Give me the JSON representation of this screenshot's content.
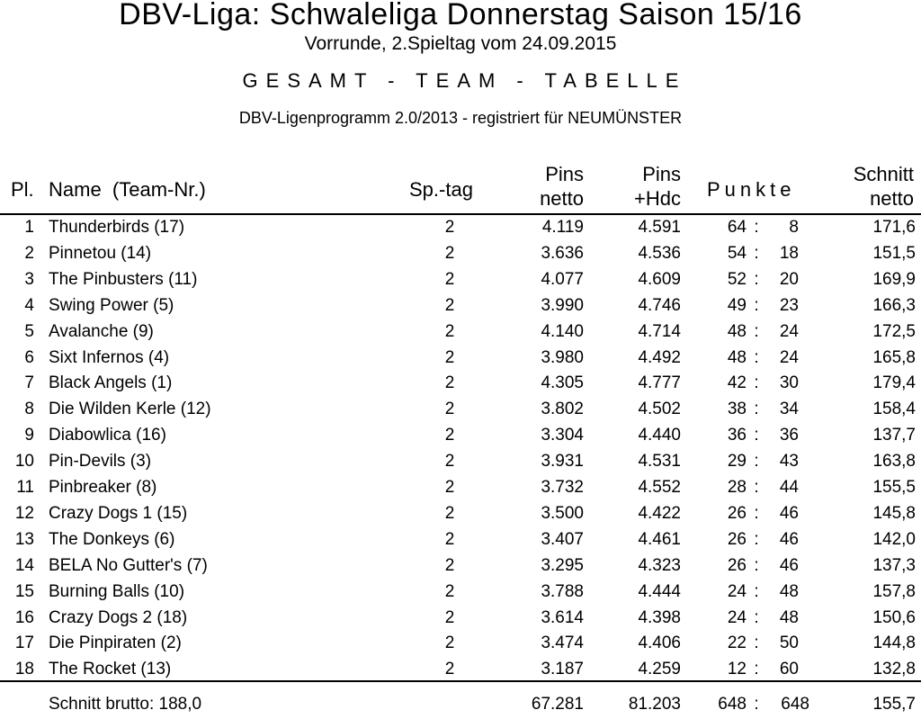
{
  "header": {
    "title": "DBV-Liga: Schwaleliga Donnerstag Saison 15/16",
    "subtitle": "Vorrunde, 2.Spieltag vom 24.09.2015",
    "section": "GESAMT - TEAM - TABELLE",
    "program": "DBV-Ligenprogramm 2.0/2013 - registriert für NEUMÜNSTER"
  },
  "columns": {
    "pl": "Pl.",
    "name": "Name  (Team-Nr.)",
    "sptag": "Sp.-tag",
    "pins_netto_1": "Pins",
    "pins_netto_2": "netto",
    "pins_hdc_1": "Pins",
    "pins_hdc_2": "+Hdc",
    "punkte": "Punkte",
    "schnitt_1": "Schnitt",
    "schnitt_2": "netto"
  },
  "rows": [
    {
      "pl": "1",
      "name": "Thunderbirds  (17)",
      "sptag": "2",
      "pins_netto": "4.119",
      "pins_hdc": "4.591",
      "punkte_plus": "64",
      "punkte_minus": "8",
      "schnitt": "171,6"
    },
    {
      "pl": "2",
      "name": "Pinnetou  (14)",
      "sptag": "2",
      "pins_netto": "3.636",
      "pins_hdc": "4.536",
      "punkte_plus": "54",
      "punkte_minus": "18",
      "schnitt": "151,5"
    },
    {
      "pl": "3",
      "name": "The Pinbusters  (11)",
      "sptag": "2",
      "pins_netto": "4.077",
      "pins_hdc": "4.609",
      "punkte_plus": "52",
      "punkte_minus": "20",
      "schnitt": "169,9"
    },
    {
      "pl": "4",
      "name": "Swing Power  (5)",
      "sptag": "2",
      "pins_netto": "3.990",
      "pins_hdc": "4.746",
      "punkte_plus": "49",
      "punkte_minus": "23",
      "schnitt": "166,3"
    },
    {
      "pl": "5",
      "name": "Avalanche  (9)",
      "sptag": "2",
      "pins_netto": "4.140",
      "pins_hdc": "4.714",
      "punkte_plus": "48",
      "punkte_minus": "24",
      "schnitt": "172,5"
    },
    {
      "pl": "6",
      "name": "Sixt Infernos  (4)",
      "sptag": "2",
      "pins_netto": "3.980",
      "pins_hdc": "4.492",
      "punkte_plus": "48",
      "punkte_minus": "24",
      "schnitt": "165,8"
    },
    {
      "pl": "7",
      "name": "Black Angels  (1)",
      "sptag": "2",
      "pins_netto": "4.305",
      "pins_hdc": "4.777",
      "punkte_plus": "42",
      "punkte_minus": "30",
      "schnitt": "179,4"
    },
    {
      "pl": "8",
      "name": "Die Wilden Kerle  (12)",
      "sptag": "2",
      "pins_netto": "3.802",
      "pins_hdc": "4.502",
      "punkte_plus": "38",
      "punkte_minus": "34",
      "schnitt": "158,4"
    },
    {
      "pl": "9",
      "name": "Diabowlica  (16)",
      "sptag": "2",
      "pins_netto": "3.304",
      "pins_hdc": "4.440",
      "punkte_plus": "36",
      "punkte_minus": "36",
      "schnitt": "137,7"
    },
    {
      "pl": "10",
      "name": "Pin-Devils  (3)",
      "sptag": "2",
      "pins_netto": "3.931",
      "pins_hdc": "4.531",
      "punkte_plus": "29",
      "punkte_minus": "43",
      "schnitt": "163,8"
    },
    {
      "pl": "11",
      "name": "Pinbreaker  (8)",
      "sptag": "2",
      "pins_netto": "3.732",
      "pins_hdc": "4.552",
      "punkte_plus": "28",
      "punkte_minus": "44",
      "schnitt": "155,5"
    },
    {
      "pl": "12",
      "name": "Crazy Dogs 1  (15)",
      "sptag": "2",
      "pins_netto": "3.500",
      "pins_hdc": "4.422",
      "punkte_plus": "26",
      "punkte_minus": "46",
      "schnitt": "145,8"
    },
    {
      "pl": "13",
      "name": "The Donkeys  (6)",
      "sptag": "2",
      "pins_netto": "3.407",
      "pins_hdc": "4.461",
      "punkte_plus": "26",
      "punkte_minus": "46",
      "schnitt": "142,0"
    },
    {
      "pl": "14",
      "name": "BELA No Gutter's  (7)",
      "sptag": "2",
      "pins_netto": "3.295",
      "pins_hdc": "4.323",
      "punkte_plus": "26",
      "punkte_minus": "46",
      "schnitt": "137,3"
    },
    {
      "pl": "15",
      "name": "Burning Balls  (10)",
      "sptag": "2",
      "pins_netto": "3.788",
      "pins_hdc": "4.444",
      "punkte_plus": "24",
      "punkte_minus": "48",
      "schnitt": "157,8"
    },
    {
      "pl": "16",
      "name": "Crazy Dogs 2  (18)",
      "sptag": "2",
      "pins_netto": "3.614",
      "pins_hdc": "4.398",
      "punkte_plus": "24",
      "punkte_minus": "48",
      "schnitt": "150,6"
    },
    {
      "pl": "17",
      "name": "Die Pinpiraten  (2)",
      "sptag": "2",
      "pins_netto": "3.474",
      "pins_hdc": "4.406",
      "punkte_plus": "22",
      "punkte_minus": "50",
      "schnitt": "144,8"
    },
    {
      "pl": "18",
      "name": "The Rocket  (13)",
      "sptag": "2",
      "pins_netto": "3.187",
      "pins_hdc": "4.259",
      "punkte_plus": "12",
      "punkte_minus": "60",
      "schnitt": "132,8"
    }
  ],
  "footer": {
    "label": "Schnitt brutto: 188,0",
    "pins_netto": "67.281",
    "pins_hdc": "81.203",
    "punkte_plus": "648",
    "punkte_minus": "648",
    "schnitt": "155,7"
  }
}
